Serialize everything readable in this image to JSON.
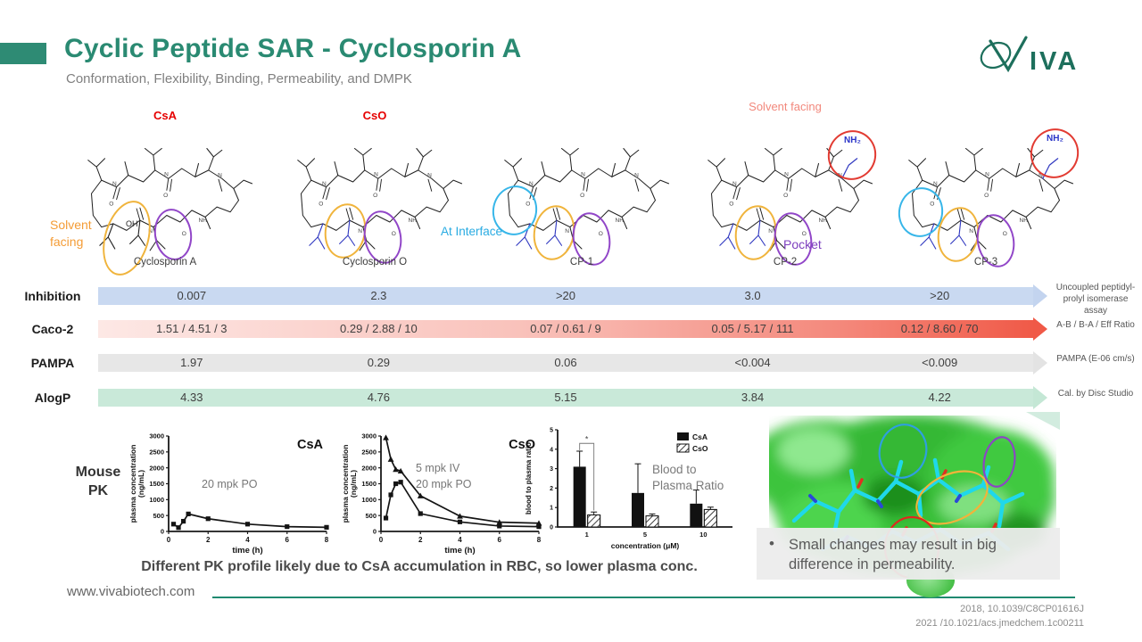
{
  "header": {
    "title": "Cyclic Peptide SAR - Cyclosporin A",
    "subtitle": "Conformation, Flexibility, Binding, Permeability, and DMPK",
    "logo_text": "IVA"
  },
  "structures": {
    "items": [
      {
        "top_label": "CsA",
        "caption": "Cyclosporin A"
      },
      {
        "top_label": "CsO",
        "caption": "Cyclosporin O"
      },
      {
        "top_label": "",
        "caption": "CP-1"
      },
      {
        "top_label": "Solvent facing",
        "caption": "CP-2"
      },
      {
        "top_label": "",
        "caption": "CP-3"
      }
    ],
    "annotations": {
      "solvent_facing_line1": "Solvent",
      "solvent_facing_line2": "facing",
      "at_interface": "At Interface",
      "pocket": "Pocket",
      "nh2": "NH₂",
      "oh": "OH"
    }
  },
  "assay_rows": [
    {
      "label": "Inhibition",
      "values": [
        "0.007",
        "2.3",
        ">20",
        "3.0",
        ">20"
      ],
      "caption": "Uncoupled peptidyl-prolyl isomerase assay"
    },
    {
      "label": "Caco-2",
      "values": [
        "1.51 / 4.51 / 3",
        "0.29 / 2.88 / 10",
        "0.07 / 0.61 / 9",
        "0.05 / 5.17 / 111",
        "0.12 / 8.60 / 70"
      ],
      "caption": "A-B / B-A / Eff Ratio"
    },
    {
      "label": "PAMPA",
      "values": [
        "1.97",
        "0.29",
        "0.06",
        "<0.004",
        "<0.009"
      ],
      "caption": "PAMPA (E-06 cm/s)"
    },
    {
      "label": "AlogP",
      "values": [
        "4.33",
        "4.76",
        "5.15",
        "3.84",
        "4.22"
      ],
      "caption": "Cal. by Disc Studio"
    }
  ],
  "mouse_pk": {
    "label_line1": "Mouse",
    "label_line2": "PK",
    "footnote": "Different PK profile likely due to CsA accumulation in RBC, so lower plasma conc."
  },
  "chart_data": [
    {
      "type": "line",
      "title": "CsA",
      "annotations": [
        "20 mpk PO"
      ],
      "xlabel": "time (h)",
      "ylabel": "plasma concentration",
      "ylabel2": "(ng/mL)",
      "xlim": [
        0,
        8
      ],
      "ylim": [
        0,
        3000
      ],
      "xticks": [
        0,
        2,
        4,
        6,
        8
      ],
      "yticks": [
        0,
        500,
        1000,
        1500,
        2000,
        2500,
        3000
      ],
      "series": [
        {
          "name": "20 mpk PO",
          "marker": "square",
          "x": [
            0.25,
            0.5,
            0.75,
            1,
            2,
            4,
            6,
            8
          ],
          "y": [
            230,
            120,
            320,
            550,
            400,
            230,
            150,
            130
          ]
        }
      ]
    },
    {
      "type": "line",
      "title": "CsO",
      "annotations": [
        "5 mpk IV",
        "20 mpk PO"
      ],
      "xlabel": "time (h)",
      "ylabel": "plasma concentration",
      "ylabel2": "(ng/mL)",
      "xlim": [
        0,
        8
      ],
      "ylim": [
        0,
        3000
      ],
      "xticks": [
        0,
        2,
        4,
        6,
        8
      ],
      "yticks": [
        0,
        500,
        1000,
        1500,
        2000,
        2500,
        3000
      ],
      "series": [
        {
          "name": "5 mpk IV",
          "marker": "triangle",
          "x": [
            0.25,
            0.5,
            0.75,
            1,
            2,
            4,
            6,
            8
          ],
          "y": [
            2950,
            2270,
            1950,
            1900,
            1120,
            480,
            290,
            260
          ]
        },
        {
          "name": "20 mpk PO",
          "marker": "square",
          "x": [
            0.25,
            0.5,
            0.75,
            1,
            2,
            4,
            6,
            8
          ],
          "y": [
            420,
            1150,
            1500,
            1550,
            560,
            300,
            170,
            150
          ]
        }
      ]
    },
    {
      "type": "bar",
      "xlabel": "concentration (μM)",
      "ylabel": "blood to plasma ratio",
      "categories": [
        "1",
        "5",
        "10"
      ],
      "ylim": [
        0,
        5
      ],
      "yticks": [
        0,
        1,
        2,
        3,
        4,
        5
      ],
      "series": [
        {
          "name": "CsA",
          "fill": "black",
          "values": [
            3.1,
            1.75,
            1.2
          ],
          "errors": [
            0.8,
            1.5,
            0.7
          ]
        },
        {
          "name": "CsO",
          "fill": "hatch",
          "values": [
            0.62,
            0.57,
            0.9
          ],
          "errors": [
            0.15,
            0.1,
            0.12
          ]
        }
      ],
      "significance": "*",
      "annotation": "Blood to Plasma Ratio"
    }
  ],
  "highlight": {
    "bullet": "•",
    "text": "Small changes may result in big difference in permeability."
  },
  "footer": {
    "website": "www.vivabiotech.com",
    "ref1": "2018, 10.1039/C8CP01616J",
    "ref2": "2021 /10.1021/acs.jmedchem.1c00211"
  }
}
